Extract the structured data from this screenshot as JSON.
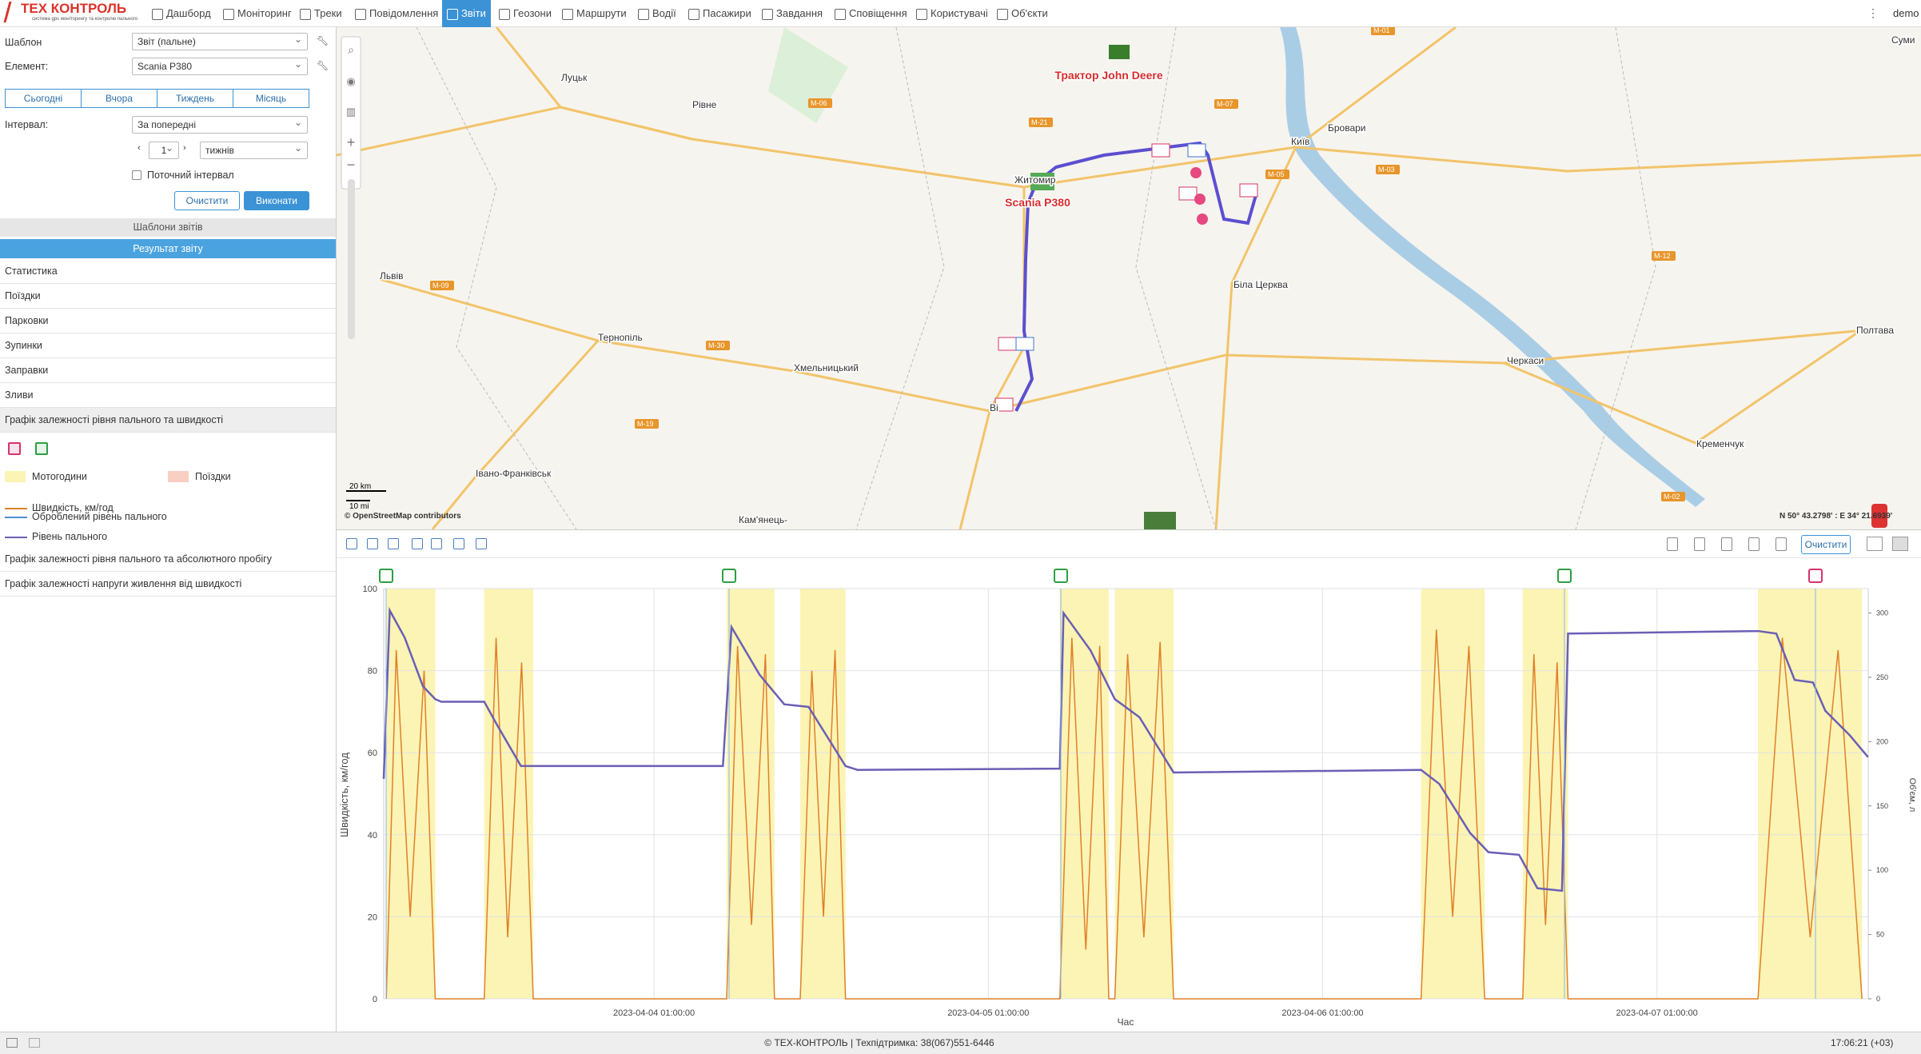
{
  "nav": {
    "logo": "ТЕХ КОНТРОЛЬ",
    "logo_sub": "система gps моніторингу та контролю пального",
    "items": [
      "Дашборд",
      "Моніторинг",
      "Треки",
      "Повідомлення",
      "Звіти",
      "Геозони",
      "Маршрути",
      "Водії",
      "Пасажири",
      "Завдання",
      "Сповіщення",
      "Користувачі",
      "Об'єкти"
    ],
    "user": "demo"
  },
  "sidebar": {
    "template_label": "Шаблон",
    "template_value": "Звіт (пальне)",
    "element_label": "Елемент:",
    "element_value": "Scania P380",
    "periods": [
      "Сьогодні",
      "Вчора",
      "Тиждень",
      "Місяць"
    ],
    "interval_label": "Інтервал:",
    "interval_value": "За попередні",
    "interval_count": 1,
    "interval_unit": "тижнів",
    "current_interval": "Поточний інтервал",
    "clear": "Очистити",
    "run": "Виконати",
    "templates_header": "Шаблони звітів",
    "result_header": "Результат звіту",
    "sections": [
      "Статистика",
      "Поїздки",
      "Парковки",
      "Зупинки",
      "Заправки",
      "Зливи",
      "Графік залежності рівня пального та швидкості"
    ],
    "legend_trips": "Поїздки",
    "legend_processed": "Оброблений рівень пального",
    "more_sections": [
      "Графік залежності рівня пального та абсолютного пробігу",
      "Графік залежності напруги живлення від швидкості"
    ]
  },
  "map": {
    "places": [
      "Луцьк",
      "Рівне",
      "Житомир",
      "Київ",
      "Бровари",
      "Суми",
      "Львів",
      "Тернопіль",
      "Хмельницький",
      "Біла Церква",
      "Черкаси",
      "Полтава",
      "Кременчук",
      "Івано-Франківськ",
      "Кам'янець-",
      "Ві"
    ],
    "roads": [
      "M-06",
      "M-21",
      "M-07",
      "M-05",
      "M-03",
      "M-12",
      "M-30",
      "M-19",
      "M-09",
      "M-01",
      "M-02"
    ],
    "vehicles": [
      "Трактор John Deere",
      "Scania P380"
    ],
    "scale_km": "20 km",
    "scale_mi": "10 mi",
    "attribution": "© OpenStreetMap contributors",
    "coords": "N 50° 43.2798' : E 34° 21.6939'"
  },
  "chart_toolbar": {
    "clear": "Очистити"
  },
  "chart_data": {
    "type": "line",
    "xlabel": "Час",
    "ylabel": "Швидкість, км/год",
    "y2label": "Об'єм, л",
    "xlim": [
      "2023-04-03 05:36:00",
      "2023-04-07 16:10:00"
    ],
    "xticks": [
      "2023-04-04 01:00:00",
      "2023-04-05 01:00:00",
      "2023-04-06 01:00:00",
      "2023-04-07 01:00:00"
    ],
    "ylim": [
      0,
      100
    ],
    "yticks": [
      0,
      20,
      40,
      60,
      80,
      100
    ],
    "y2lim": [
      0,
      319
    ],
    "y2ticks": [
      0,
      50,
      100,
      150,
      200,
      250,
      300
    ],
    "grid": true,
    "bands": {
      "name": "Мотогодини",
      "color": "#fbf4b4",
      "ranges": [
        [
          "2023-04-03 05:47:00",
          "2023-04-03 09:18:00"
        ],
        [
          "2023-04-03 12:49:00",
          "2023-04-03 16:20:00"
        ],
        [
          "2023-04-04 06:13:00",
          "2023-04-04 09:39:00"
        ],
        [
          "2023-04-04 11:30:00",
          "2023-04-04 14:45:00"
        ],
        [
          "2023-04-05 06:08:00",
          "2023-04-05 09:39:00"
        ],
        [
          "2023-04-05 10:05:00",
          "2023-04-05 14:18:00"
        ],
        [
          "2023-04-06 08:04:00",
          "2023-04-06 12:38:00"
        ],
        [
          "2023-04-06 15:22:00",
          "2023-04-06 18:37:00"
        ],
        [
          "2023-04-07 08:15:00",
          "2023-04-07 15:43:00"
        ]
      ]
    },
    "series": [
      {
        "name": "Швидкість, км/год",
        "color": "#e0802a",
        "x": [
          "2023-04-03 05:47:00",
          "2023-04-03 06:30:00",
          "2023-04-03 07:30:00",
          "2023-04-03 08:30:00",
          "2023-04-03 09:18:00",
          "2023-04-03 12:49:00",
          "2023-04-03 13:40:00",
          "2023-04-03 14:30:00",
          "2023-04-03 15:30:00",
          "2023-04-03 16:20:00",
          "2023-04-04 06:13:00",
          "2023-04-04 07:00:00",
          "2023-04-04 08:00:00",
          "2023-04-04 09:00:00",
          "2023-04-04 09:39:00",
          "2023-04-04 11:30:00",
          "2023-04-04 12:20:00",
          "2023-04-04 13:10:00",
          "2023-04-04 14:00:00",
          "2023-04-04 14:45:00",
          "2023-04-05 06:08:00",
          "2023-04-05 07:00:00",
          "2023-04-05 08:00:00",
          "2023-04-05 09:00:00",
          "2023-04-05 09:39:00",
          "2023-04-05 10:05:00",
          "2023-04-05 11:00:00",
          "2023-04-05 12:10:00",
          "2023-04-05 13:20:00",
          "2023-04-05 14:18:00",
          "2023-04-06 08:04:00",
          "2023-04-06 09:10:00",
          "2023-04-06 10:20:00",
          "2023-04-06 11:30:00",
          "2023-04-06 12:38:00",
          "2023-04-06 15:22:00",
          "2023-04-06 16:10:00",
          "2023-04-06 17:00:00",
          "2023-04-06 17:50:00",
          "2023-04-06 18:37:00",
          "2023-04-07 08:15:00",
          "2023-04-07 10:00:00",
          "2023-04-07 12:00:00",
          "2023-04-07 14:00:00",
          "2023-04-07 15:43:00"
        ],
        "values": [
          0,
          85,
          20,
          80,
          0,
          0,
          88,
          15,
          82,
          0,
          0,
          86,
          18,
          84,
          0,
          0,
          80,
          20,
          85,
          0,
          0,
          88,
          12,
          86,
          0,
          0,
          84,
          15,
          87,
          0,
          0,
          90,
          20,
          86,
          0,
          0,
          84,
          18,
          82,
          0,
          0,
          88,
          15,
          85,
          0
        ]
      },
      {
        "name": "Рівень пального",
        "color": "#6b5fb5",
        "axis": "y2",
        "x": [
          "2023-04-03 05:36:00",
          "2023-04-03 06:02:00",
          "2023-04-03 07:06:00",
          "2023-04-03 08:25:00",
          "2023-04-03 09:18:00",
          "2023-04-03 09:44:00",
          "2023-04-03 12:49:00",
          "2023-04-03 13:41:00",
          "2023-04-03 15:27:00",
          "2023-04-03 16:46:00",
          "2023-04-04 05:57:00",
          "2023-04-04 06:34:00",
          "2023-04-04 08:35:00",
          "2023-04-04 10:21:00",
          "2023-04-04 12:06:00",
          "2023-04-04 14:45:00",
          "2023-04-04 15:37:00",
          "2023-04-05 06:08:00",
          "2023-04-05 06:24:00",
          "2023-04-05 08:20:00",
          "2023-04-05 10:05:00",
          "2023-04-05 11:51:00",
          "2023-04-05 14:18:00",
          "2023-04-06 08:04:00",
          "2023-04-06 09:23:00",
          "2023-04-06 11:35:00",
          "2023-04-06 12:54:00",
          "2023-04-06 15:06:00",
          "2023-04-06 16:25:00",
          "2023-04-06 18:11:00",
          "2023-04-06 18:37:00",
          "2023-04-07 08:15:00",
          "2023-04-07 09:34:00",
          "2023-04-07 10:53:00",
          "2023-04-07 12:12:00",
          "2023-04-07 13:05:00",
          "2023-04-07 14:50:00",
          "2023-04-07 16:09:00"
        ],
        "values": [
          171,
          302,
          281,
          243,
          233,
          231,
          231,
          214,
          181,
          181,
          181,
          289,
          252,
          229,
          227,
          181,
          178,
          179,
          300,
          271,
          233,
          219,
          176,
          178,
          167,
          129,
          114,
          112,
          86,
          84,
          284,
          286,
          284,
          248,
          246,
          224,
          205,
          188
        ]
      }
    ]
  },
  "footer": {
    "copyright": "© ТЕХ-КОНТРОЛЬ | Техпідтримка: 38(067)551-6446",
    "time": "17:06:21 (+03)"
  }
}
